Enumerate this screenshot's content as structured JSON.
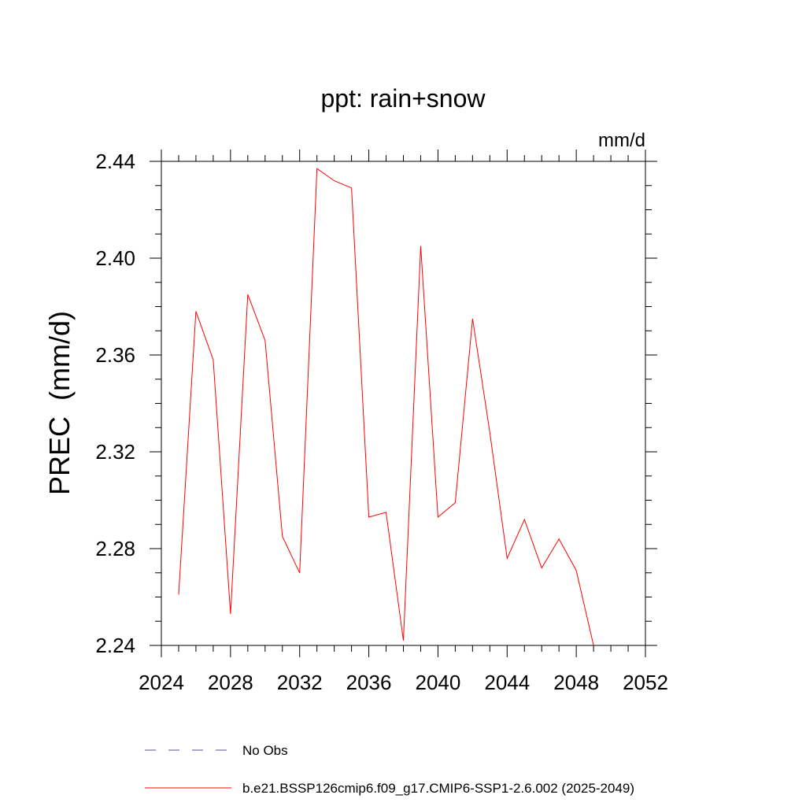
{
  "chart_data": {
    "type": "line",
    "title": "ppt: rain+snow",
    "units": "mm/d",
    "ylabel": "PREC  (mm/d)",
    "xlabel": "",
    "xlim": [
      2024,
      2052
    ],
    "ylim": [
      2.24,
      2.44
    ],
    "xticks": [
      2024,
      2028,
      2032,
      2036,
      2040,
      2044,
      2048,
      2052
    ],
    "xtick_labels": [
      "2024",
      "2028",
      "2032",
      "2036",
      "2040",
      "2044",
      "2048",
      "2052"
    ],
    "yticks": [
      2.24,
      2.28,
      2.32,
      2.36,
      2.4,
      2.44
    ],
    "ytick_labels": [
      "2.24",
      "2.28",
      "2.32",
      "2.36",
      "2.40",
      "2.44"
    ],
    "x_minor_step": 1,
    "y_minor_step": 0.01,
    "grid": false,
    "series": [
      {
        "name": "b.e21.BSSP126cmip6.f09_g17.CMIP6-SSP1-2.6.002 (2025-2049)",
        "color": "#ff0000",
        "style": "solid",
        "x": [
          2025,
          2026,
          2027,
          2028,
          2029,
          2030,
          2031,
          2032,
          2033,
          2034,
          2035,
          2036,
          2037,
          2038,
          2039,
          2040,
          2041,
          2042,
          2043,
          2044,
          2045,
          2046,
          2047,
          2048,
          2049
        ],
        "values": [
          2.261,
          2.378,
          2.358,
          2.253,
          2.385,
          2.366,
          2.285,
          2.27,
          2.437,
          2.432,
          2.429,
          2.293,
          2.295,
          2.242,
          2.405,
          2.293,
          2.299,
          2.375,
          2.328,
          2.276,
          2.292,
          2.272,
          2.284,
          2.271,
          2.24
        ]
      }
    ],
    "legend": [
      {
        "label": "No Obs",
        "color": "#5050a0",
        "style": "dashed"
      },
      {
        "label": "b.e21.BSSP126cmip6.f09_g17.CMIP6-SSP1-2.6.002 (2025-2049)",
        "color": "#ff0000",
        "style": "solid"
      }
    ],
    "legend_position": "bottom-left"
  }
}
